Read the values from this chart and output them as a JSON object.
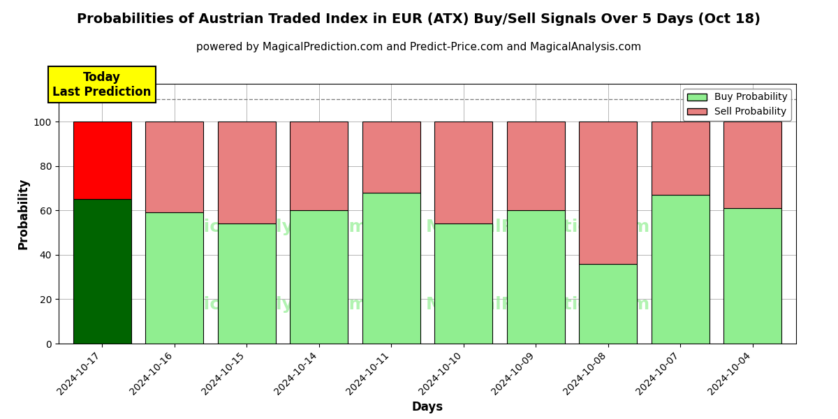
{
  "title": "Probabilities of Austrian Traded Index in EUR (ATX) Buy/Sell Signals Over 5 Days (Oct 18)",
  "subtitle": "powered by MagicalPrediction.com and Predict-Price.com and MagicalAnalysis.com",
  "xlabel": "Days",
  "ylabel": "Probability",
  "dates": [
    "2024-10-17",
    "2024-10-16",
    "2024-10-15",
    "2024-10-14",
    "2024-10-11",
    "2024-10-10",
    "2024-10-09",
    "2024-10-08",
    "2024-10-07",
    "2024-10-04"
  ],
  "buy_values": [
    65,
    59,
    54,
    60,
    68,
    54,
    60,
    36,
    67,
    61
  ],
  "sell_values": [
    35,
    41,
    46,
    40,
    32,
    46,
    40,
    64,
    33,
    39
  ],
  "today_buy_color": "#006400",
  "today_sell_color": "#FF0000",
  "buy_color": "#90EE90",
  "sell_color": "#E88080",
  "today_label": "Today\nLast Prediction",
  "today_label_bg": "#FFFF00",
  "dashed_line_y": 110,
  "ylim": [
    0,
    117
  ],
  "yticks": [
    0,
    20,
    40,
    60,
    80,
    100
  ],
  "legend_buy_label": "Buy Probability",
  "legend_sell_label": "Sell Probability",
  "background_color": "#ffffff",
  "grid_color": "#aaaaaa",
  "title_fontsize": 14,
  "subtitle_fontsize": 11,
  "axis_label_fontsize": 12,
  "tick_fontsize": 10,
  "bar_width": 0.8
}
